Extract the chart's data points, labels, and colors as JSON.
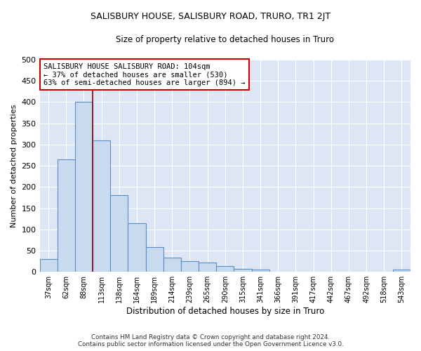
{
  "title": "SALISBURY HOUSE, SALISBURY ROAD, TRURO, TR1 2JT",
  "subtitle": "Size of property relative to detached houses in Truro",
  "xlabel": "Distribution of detached houses by size in Truro",
  "ylabel": "Number of detached properties",
  "bar_color": "#c9d9ee",
  "bar_edge_color": "#5b8ec4",
  "categories": [
    "37sqm",
    "62sqm",
    "88sqm",
    "113sqm",
    "138sqm",
    "164sqm",
    "189sqm",
    "214sqm",
    "239sqm",
    "265sqm",
    "290sqm",
    "315sqm",
    "341sqm",
    "366sqm",
    "391sqm",
    "417sqm",
    "442sqm",
    "467sqm",
    "492sqm",
    "518sqm",
    "543sqm"
  ],
  "values": [
    30,
    265,
    400,
    310,
    180,
    115,
    58,
    33,
    25,
    22,
    14,
    7,
    5,
    1,
    0,
    0,
    0,
    0,
    0,
    0,
    5
  ],
  "ylim": [
    0,
    500
  ],
  "yticks": [
    0,
    50,
    100,
    150,
    200,
    250,
    300,
    350,
    400,
    450,
    500
  ],
  "property_line_color": "#8b0000",
  "annotation_text": "SALISBURY HOUSE SALISBURY ROAD: 104sqm\n← 37% of detached houses are smaller (530)\n63% of semi-detached houses are larger (894) →",
  "annotation_box_color": "#ffffff",
  "annotation_edge_color": "#cc0000",
  "footer_line1": "Contains HM Land Registry data © Crown copyright and database right 2024.",
  "footer_line2": "Contains public sector information licensed under the Open Government Licence v3.0.",
  "plot_background": "#dce6f5",
  "grid_color": "#ffffff"
}
